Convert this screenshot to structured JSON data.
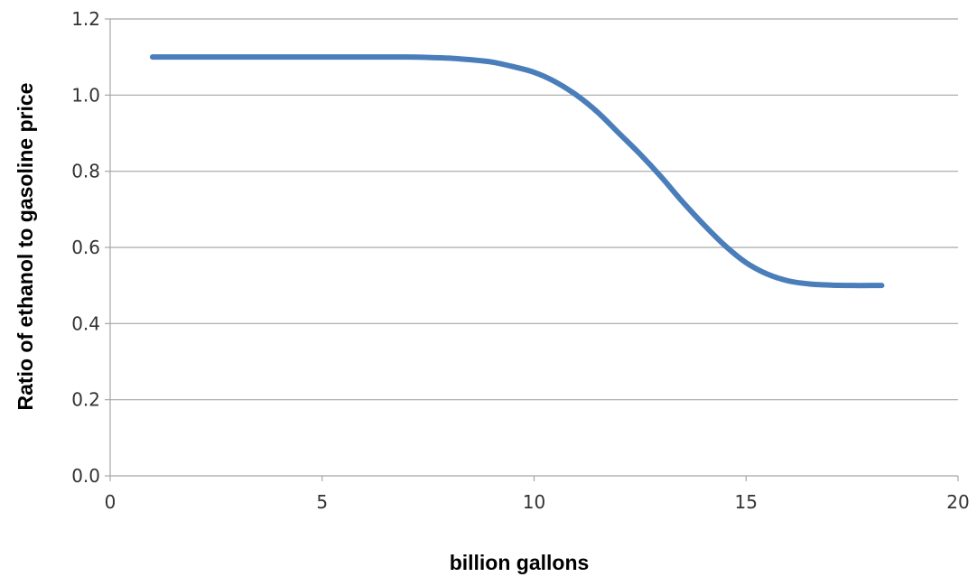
{
  "chart_data": {
    "type": "line",
    "title": "",
    "xlabel": "billion gallons",
    "ylabel": "Ratio of ethanol to gasoline price",
    "xlim": [
      0,
      20
    ],
    "ylim": [
      0,
      1.2
    ],
    "x_ticks": [
      "0",
      "5",
      "10",
      "15",
      "20"
    ],
    "y_ticks": [
      "0.0",
      "0.2",
      "0.4",
      "0.6",
      "0.8",
      "1.0",
      "1.2"
    ],
    "grid": "horizontal",
    "legend": "none",
    "series": [
      {
        "color": "#4a7ebb",
        "x": [
          1,
          2,
          3,
          4,
          5,
          6,
          7,
          7.5,
          8,
          8.5,
          9,
          9.5,
          10,
          10.5,
          11,
          11.5,
          12,
          12.5,
          13,
          13.5,
          14,
          14.5,
          15,
          15.5,
          16,
          16.5,
          17,
          17.5,
          18,
          18.2
        ],
        "y": [
          1.1,
          1.1,
          1.1,
          1.1,
          1.1,
          1.1,
          1.1,
          1.099,
          1.097,
          1.093,
          1.087,
          1.075,
          1.06,
          1.035,
          1.0,
          0.955,
          0.9,
          0.845,
          0.785,
          0.72,
          0.66,
          0.605,
          0.56,
          0.53,
          0.512,
          0.504,
          0.501,
          0.5,
          0.5,
          0.5
        ]
      }
    ]
  }
}
